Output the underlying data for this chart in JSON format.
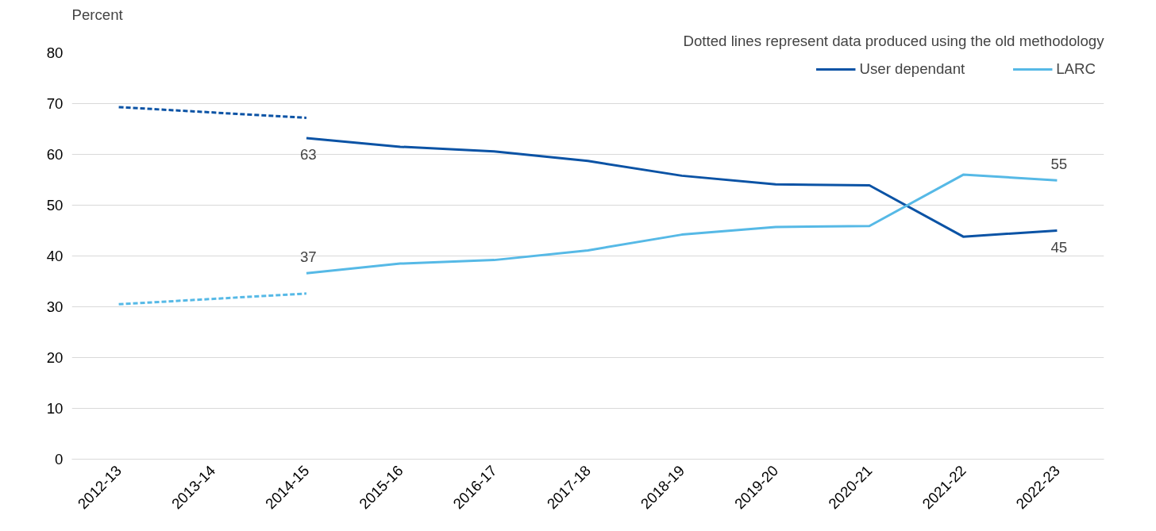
{
  "chart_data": {
    "type": "line",
    "ylabel": "Percent",
    "categories": [
      "2012-13",
      "2013-14",
      "2014-15",
      "2015-16",
      "2016-17",
      "2017-18",
      "2018-19",
      "2019-20",
      "2020-21",
      "2021-22",
      "2022-23"
    ],
    "series": [
      {
        "name": "User dependant",
        "color": "#0b53a5",
        "line_style": "solid",
        "values": [
          null,
          null,
          63.2,
          61.5,
          60.6,
          58.7,
          55.8,
          54.1,
          53.9,
          43.8,
          45.0
        ],
        "value_labels": [
          null,
          null,
          "63",
          null,
          null,
          null,
          null,
          null,
          null,
          null,
          "45"
        ]
      },
      {
        "name": "LARC",
        "color": "#56b9e6",
        "line_style": "solid",
        "values": [
          null,
          null,
          36.6,
          38.5,
          39.2,
          41.1,
          44.2,
          45.7,
          45.9,
          56.0,
          54.9
        ],
        "value_labels": [
          null,
          null,
          "37",
          null,
          null,
          null,
          null,
          null,
          null,
          null,
          "55"
        ]
      },
      {
        "color": "#0b53a5",
        "line_style": "dashed",
        "values": [
          69.3,
          null,
          67.2,
          null,
          null,
          null,
          null,
          null,
          null,
          null,
          null
        ]
      },
      {
        "color": "#56b9e6",
        "line_style": "dashed",
        "values": [
          30.5,
          null,
          32.6,
          null,
          null,
          null,
          null,
          null,
          null,
          null,
          null
        ]
      }
    ],
    "ylim": [
      0,
      80
    ],
    "yticks": [
      0,
      10,
      20,
      30,
      40,
      50,
      60,
      70,
      80
    ],
    "grid": "y",
    "legend": "top right",
    "marker": "none",
    "annotations": [
      "Dotted lines represent data produced using the old methodology"
    ]
  }
}
